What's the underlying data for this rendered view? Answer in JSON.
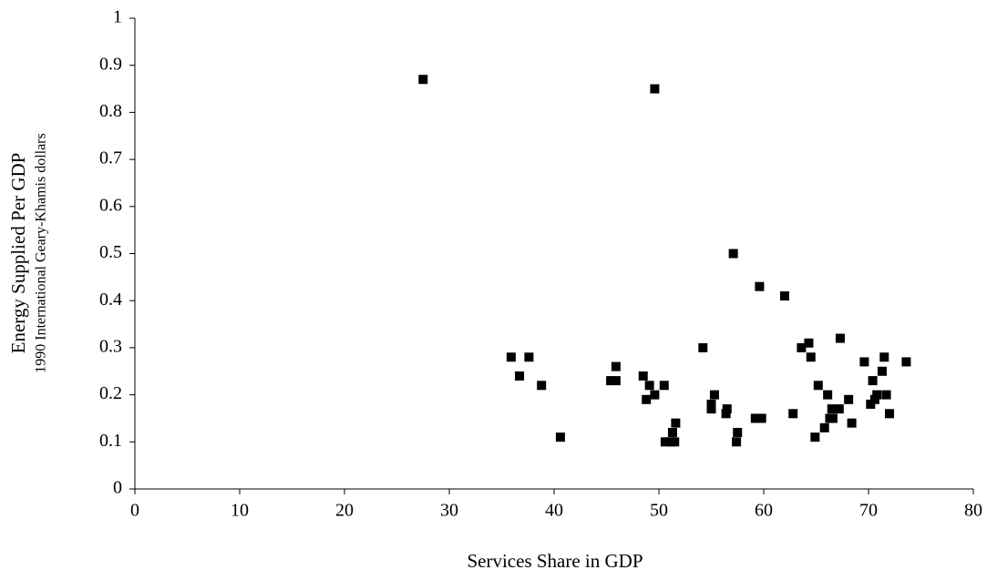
{
  "chart_data": {
    "type": "scatter",
    "x_label": "Services Share in GDP",
    "y_label": "Energy Supplied Per GDP",
    "y_sublabel": "1990 International Geary-Khamis dollars",
    "x": [
      27.5,
      49.6,
      57.1,
      59.6,
      62.0,
      35.9,
      37.6,
      36.7,
      38.8,
      40.6,
      45.4,
      45.9,
      45.9,
      48.5,
      48.8,
      49.1,
      49.6,
      50.5,
      50.6,
      51.1,
      51.3,
      51.5,
      51.6,
      54.2,
      55.0,
      55.0,
      55.3,
      56.4,
      56.5,
      57.4,
      57.5,
      59.2,
      59.8,
      62.8,
      63.6,
      64.3,
      64.5,
      64.9,
      65.2,
      65.8,
      66.1,
      66.3,
      66.5,
      66.6,
      67.2,
      67.3,
      68.1,
      68.4,
      69.6,
      70.2,
      70.4,
      70.6,
      70.8,
      71.3,
      71.5,
      71.7,
      72.0,
      73.6
    ],
    "values": [
      0.87,
      0.85,
      0.5,
      0.43,
      0.41,
      0.28,
      0.28,
      0.24,
      0.22,
      0.11,
      0.23,
      0.23,
      0.26,
      0.24,
      0.19,
      0.22,
      0.2,
      0.22,
      0.1,
      0.1,
      0.12,
      0.1,
      0.14,
      0.3,
      0.18,
      0.17,
      0.2,
      0.16,
      0.17,
      0.1,
      0.12,
      0.15,
      0.15,
      0.16,
      0.3,
      0.31,
      0.28,
      0.11,
      0.22,
      0.13,
      0.2,
      0.15,
      0.17,
      0.15,
      0.17,
      0.32,
      0.19,
      0.14,
      0.27,
      0.18,
      0.23,
      0.19,
      0.2,
      0.25,
      0.28,
      0.2,
      0.16,
      0.27
    ],
    "color": "#000000",
    "xlim": [
      0,
      80
    ],
    "xticks": [
      0,
      10,
      20,
      30,
      40,
      50,
      60,
      70,
      80
    ],
    "ylim": [
      0,
      1
    ],
    "yticks": [
      0,
      0.1,
      0.2,
      0.3,
      0.4,
      0.5,
      0.6,
      0.7,
      0.8,
      0.9,
      1
    ],
    "grid": false
  }
}
